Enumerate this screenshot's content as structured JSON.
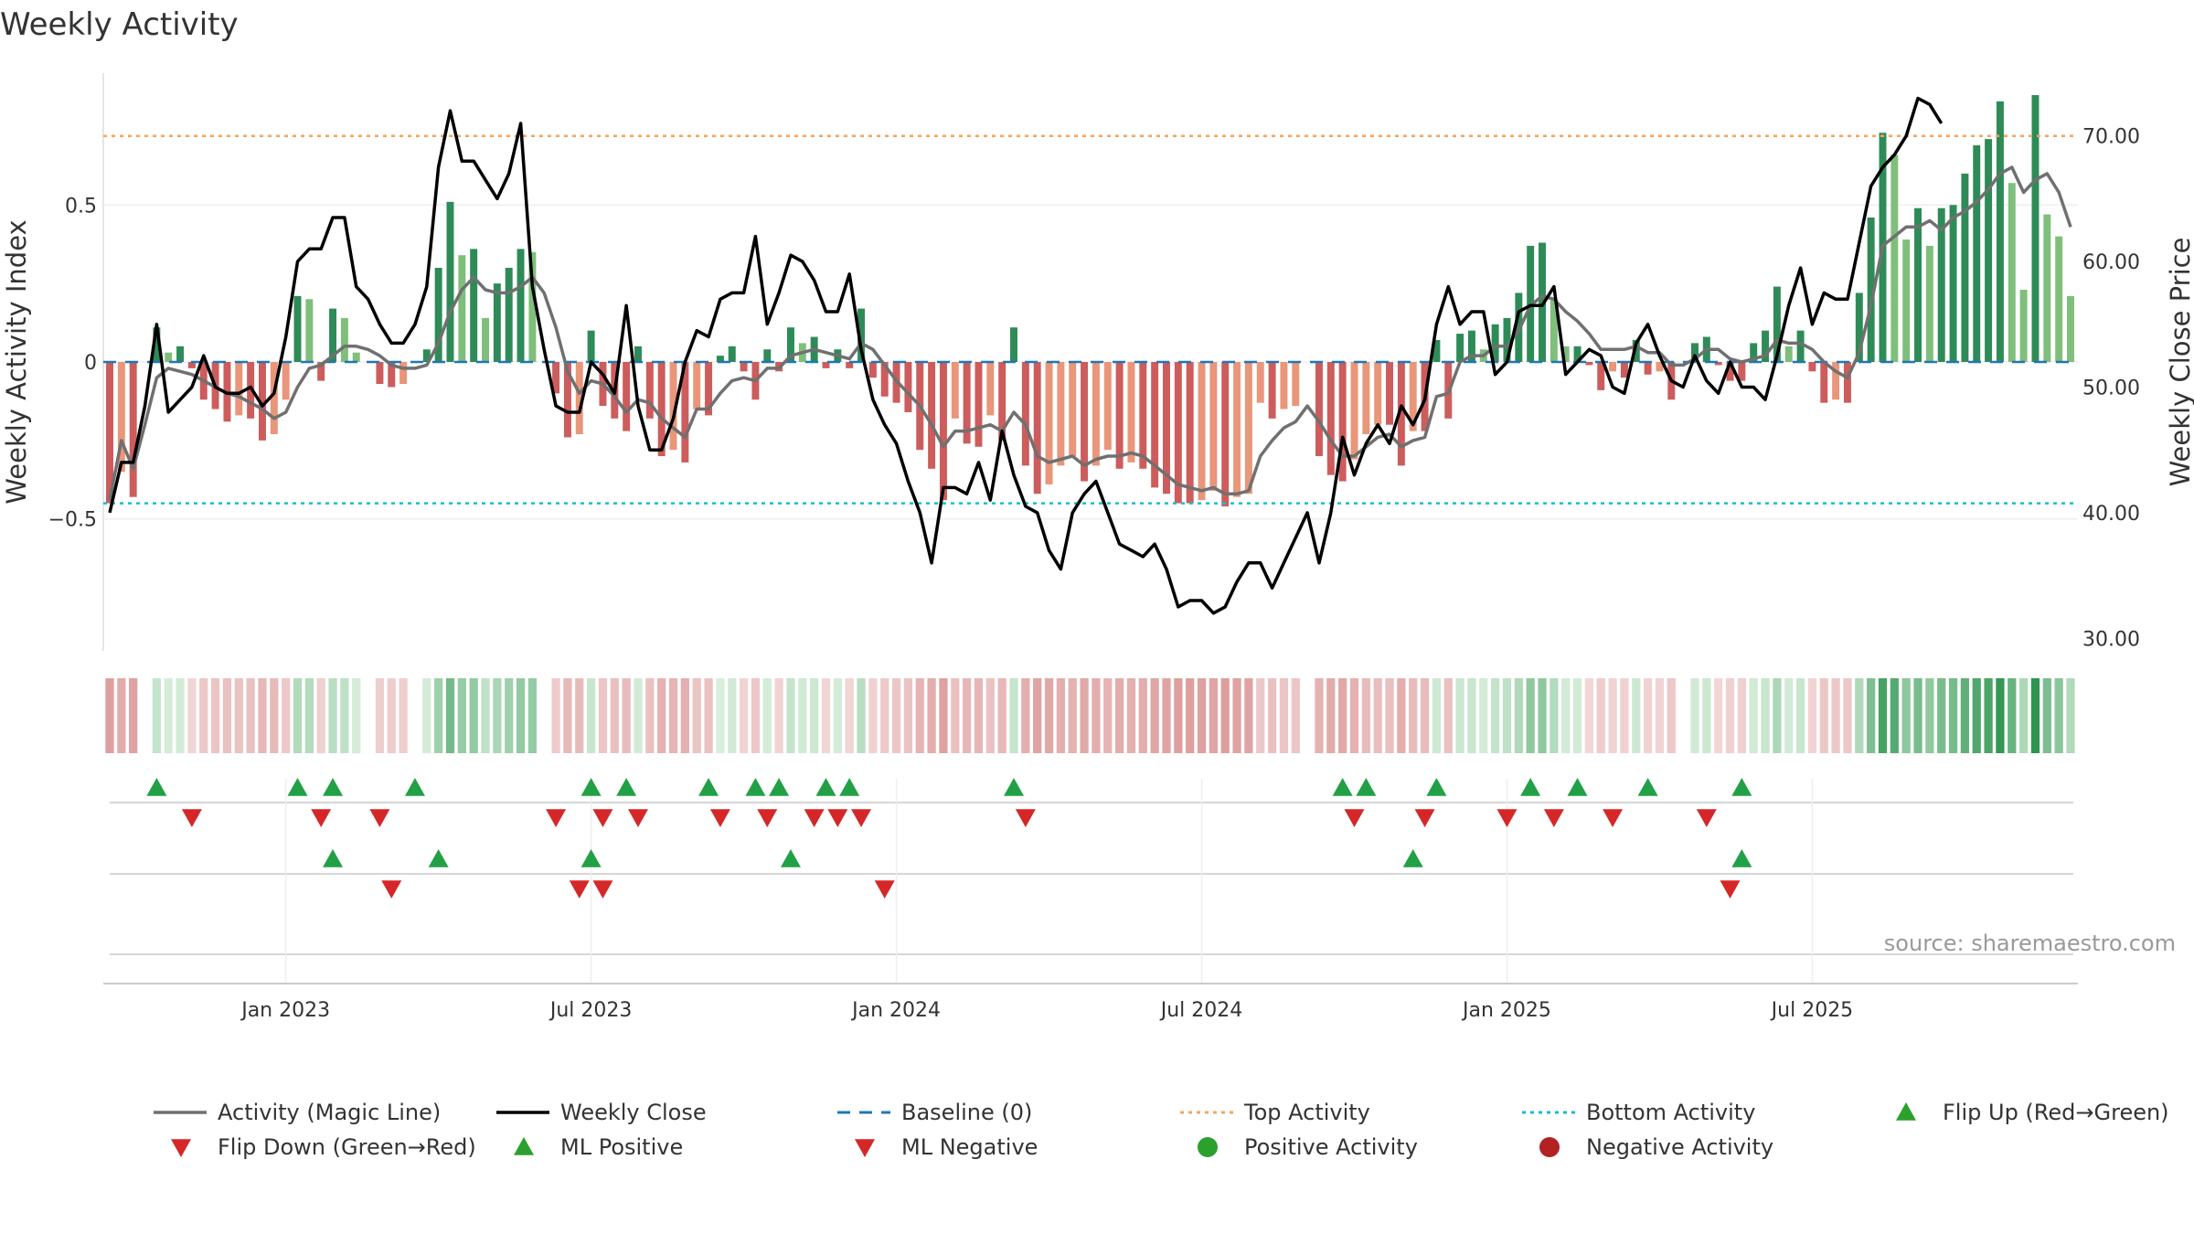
{
  "chart_data": {
    "type": "bar",
    "title": "Weekly Activity",
    "ylabel": "Weekly Activity Index",
    "y2label": "Weekly Close Price",
    "ylim": [
      -0.92,
      0.92
    ],
    "y2lim": [
      29,
      75
    ],
    "yticks": [
      {
        "v": 0.5,
        "label": "0.5"
      },
      {
        "v": 0,
        "label": "0"
      },
      {
        "v": -0.5,
        "label": "−0.5"
      }
    ],
    "y2ticks": [
      {
        "v": 70,
        "label": "70.00"
      },
      {
        "v": 60,
        "label": "60.00"
      },
      {
        "v": 50,
        "label": "50.00"
      },
      {
        "v": 40,
        "label": "40.00"
      },
      {
        "v": 30,
        "label": "30.00"
      }
    ],
    "xticks": [
      {
        "i": 15,
        "label": "Jan 2023"
      },
      {
        "i": 41,
        "label": "Jul 2023"
      },
      {
        "i": 67,
        "label": "Jan 2024"
      },
      {
        "i": 93,
        "label": "Jul 2024"
      },
      {
        "i": 119,
        "label": "Jan 2025"
      },
      {
        "i": 145,
        "label": "Jul 2025"
      }
    ],
    "top_activity": 0.72,
    "bottom_activity": -0.45,
    "activity": [
      -0.45,
      -0.35,
      -0.43,
      0,
      0.11,
      0.03,
      0.05,
      -0.02,
      -0.12,
      -0.15,
      -0.19,
      -0.17,
      -0.18,
      -0.25,
      -0.23,
      -0.12,
      0.21,
      0.2,
      -0.06,
      0.17,
      0.14,
      0.03,
      0,
      -0.07,
      -0.08,
      -0.07,
      0,
      0.04,
      0.3,
      0.51,
      0.34,
      0.36,
      0.14,
      0.25,
      0.3,
      0.36,
      0.35,
      0,
      -0.1,
      -0.24,
      -0.23,
      0.1,
      -0.14,
      -0.18,
      -0.22,
      0.05,
      -0.18,
      -0.3,
      -0.28,
      -0.32,
      -0.15,
      -0.17,
      0.02,
      0.05,
      -0.03,
      -0.12,
      0.04,
      -0.03,
      0.11,
      0.06,
      0.08,
      -0.02,
      0.04,
      -0.02,
      0.17,
      -0.05,
      -0.11,
      -0.13,
      -0.16,
      -0.28,
      -0.34,
      -0.44,
      -0.18,
      -0.26,
      -0.27,
      -0.17,
      -0.25,
      0.11,
      -0.33,
      -0.42,
      -0.39,
      -0.33,
      -0.3,
      -0.38,
      -0.33,
      -0.28,
      -0.34,
      -0.32,
      -0.34,
      -0.4,
      -0.42,
      -0.45,
      -0.45,
      -0.44,
      -0.41,
      -0.46,
      -0.43,
      -0.42,
      -0.13,
      -0.18,
      -0.15,
      -0.14,
      0,
      -0.3,
      -0.36,
      -0.38,
      -0.31,
      -0.23,
      -0.2,
      -0.2,
      -0.33,
      -0.22,
      -0.22,
      0.07,
      -0.18,
      0.09,
      0.1,
      0.04,
      0.12,
      0.14,
      0.22,
      0.37,
      0.38,
      0.2,
      0.05,
      0.05,
      -0.01,
      -0.09,
      -0.03,
      -0.05,
      0.07,
      -0.04,
      -0.03,
      -0.12,
      0,
      0.06,
      0.08,
      -0.01,
      -0.06,
      -0.06,
      0.06,
      0.1,
      0.24,
      0.05,
      0.1,
      -0.03,
      -0.13,
      -0.12,
      -0.13,
      0.22,
      0.46,
      0.73,
      0.66,
      0.39,
      0.49,
      0.37,
      0.49,
      0.5,
      0.6,
      0.69,
      0.71,
      0.83,
      0.57,
      0.23,
      0.85,
      0.47,
      0.4,
      0.21
    ],
    "activity_labels": [],
    "magic_line": [
      -0.44,
      -0.25,
      -0.34,
      -0.2,
      -0.05,
      -0.02,
      -0.03,
      -0.04,
      -0.06,
      -0.08,
      -0.1,
      -0.11,
      -0.13,
      -0.15,
      -0.18,
      -0.16,
      -0.08,
      -0.02,
      -0.01,
      0.02,
      0.05,
      0.05,
      0.04,
      0.02,
      -0.01,
      -0.02,
      -0.02,
      -0.01,
      0.06,
      0.16,
      0.23,
      0.27,
      0.23,
      0.22,
      0.22,
      0.24,
      0.27,
      0.22,
      0.11,
      -0.03,
      -0.1,
      -0.06,
      -0.07,
      -0.11,
      -0.16,
      -0.12,
      -0.13,
      -0.18,
      -0.21,
      -0.24,
      -0.15,
      -0.15,
      -0.1,
      -0.06,
      -0.05,
      -0.06,
      -0.02,
      -0.02,
      0.02,
      0.03,
      0.04,
      0.03,
      0.02,
      0.01,
      0.06,
      0.04,
      -0.01,
      -0.06,
      -0.1,
      -0.14,
      -0.2,
      -0.27,
      -0.22,
      -0.22,
      -0.21,
      -0.2,
      -0.22,
      -0.16,
      -0.2,
      -0.3,
      -0.32,
      -0.31,
      -0.3,
      -0.33,
      -0.31,
      -0.3,
      -0.3,
      -0.29,
      -0.3,
      -0.33,
      -0.36,
      -0.39,
      -0.4,
      -0.41,
      -0.4,
      -0.42,
      -0.42,
      -0.41,
      -0.3,
      -0.25,
      -0.21,
      -0.19,
      -0.14,
      -0.19,
      -0.25,
      -0.3,
      -0.3,
      -0.27,
      -0.24,
      -0.23,
      -0.27,
      -0.25,
      -0.24,
      -0.11,
      -0.1,
      0,
      0.02,
      0.02,
      0.05,
      0.05,
      0.1,
      0.18,
      0.21,
      0.2,
      0.16,
      0.13,
      0.09,
      0.04,
      0.04,
      0.04,
      0.05,
      0.03,
      0.03,
      -0.01,
      -0.01,
      0.01,
      0.04,
      0.04,
      0.01,
      0,
      0.01,
      0.02,
      0.07,
      0.06,
      0.06,
      0.04,
      0,
      -0.03,
      -0.05,
      0.03,
      0.18,
      0.37,
      0.4,
      0.43,
      0.43,
      0.45,
      0.42,
      0.46,
      0.48,
      0.51,
      0.55,
      0.6,
      0.62,
      0.54,
      0.58,
      0.6,
      0.54,
      0.43
    ],
    "close": [
      40.0,
      44.0,
      44.0,
      48.5,
      55.0,
      48.0,
      49.0,
      50.0,
      52.5,
      50.0,
      49.5,
      49.5,
      50.0,
      48.5,
      49.5,
      54.0,
      60.0,
      61.0,
      61.0,
      63.5,
      63.5,
      58.0,
      57.0,
      55.0,
      53.5,
      53.5,
      55.0,
      58.0,
      67.5,
      72.0,
      68.0,
      68.0,
      66.5,
      65.0,
      67.0,
      71.0,
      58.0,
      53.0,
      48.5,
      48.0,
      48.0,
      52.0,
      51.0,
      49.5,
      56.5,
      48.5,
      45.0,
      45.0,
      47.5,
      52.0,
      54.5,
      54.0,
      57.0,
      57.5,
      57.5,
      62.0,
      55.0,
      57.5,
      60.5,
      60.0,
      58.5,
      56.0,
      56.0,
      59.0,
      53.0,
      49.0,
      47.0,
      45.5,
      42.5,
      40.0,
      36.0,
      42.0,
      42.0,
      41.5,
      44.0,
      41.0,
      46.5,
      43.0,
      40.5,
      40.0,
      37.0,
      35.5,
      40.0,
      41.5,
      42.5,
      40.0,
      37.5,
      37.0,
      36.5,
      37.5,
      35.5,
      32.5,
      33.0,
      33.0,
      32.0,
      32.5,
      34.5,
      36.0,
      36.0,
      34.0,
      36.0,
      38.0,
      40.0,
      36.0,
      40.0,
      46.0,
      43.0,
      45.5,
      47.0,
      45.5,
      48.5,
      47.0,
      49.0,
      55.0,
      58.0,
      55.0,
      56.0,
      56.0,
      51.0,
      52.0,
      56.0,
      56.5,
      56.5,
      58.0,
      51.0,
      52.0,
      53.0,
      52.5,
      50.0,
      49.5,
      53.5,
      55.0,
      52.5,
      50.5,
      50.0,
      52.5,
      50.5,
      49.5,
      52.0,
      50.0,
      50.0,
      49.0,
      52.5,
      56.5,
      59.5,
      55.0,
      57.5,
      57.0,
      57.0,
      61.5,
      66.0,
      67.5,
      68.5,
      70.0,
      73.0,
      72.5,
      71.0
    ],
    "flip_up": [
      4,
      16,
      19,
      26,
      41,
      44,
      51,
      55,
      57,
      61,
      63,
      77,
      105,
      107,
      113,
      121,
      125,
      131,
      139
    ],
    "flip_down": [
      7,
      18,
      23,
      38,
      42,
      45,
      52,
      56,
      60,
      62,
      64,
      78,
      106,
      112,
      119,
      123,
      128,
      136
    ],
    "ml_positive": [
      19,
      28,
      41,
      58,
      111,
      139
    ],
    "ml_negative": [
      24,
      40,
      42,
      66,
      138
    ],
    "legend": [
      {
        "label": "Activity (Magic Line)",
        "kind": "line",
        "color": "#707070"
      },
      {
        "label": "Weekly Close",
        "kind": "line",
        "color": "#000000"
      },
      {
        "label": "Baseline (0)",
        "kind": "dash",
        "color": "#1f77b4"
      },
      {
        "label": "Top Activity",
        "kind": "dot",
        "color": "#f4a460"
      },
      {
        "label": "Bottom Activity",
        "kind": "dot",
        "color": "#17becf"
      },
      {
        "label": "Flip Up (Red→Green)",
        "kind": "tri-up",
        "color": "#2ca02c"
      },
      {
        "label": "Flip Down (Green→Red)",
        "kind": "tri-down",
        "color": "#d62728"
      },
      {
        "label": "ML Positive",
        "kind": "tri-up",
        "color": "#2ca02c"
      },
      {
        "label": "ML Negative",
        "kind": "tri-down",
        "color": "#d62728"
      },
      {
        "label": "Positive Activity",
        "kind": "circle",
        "color": "#2ca02c"
      },
      {
        "label": "Negative Activity",
        "kind": "circle",
        "color": "#b22222"
      }
    ],
    "source": "source: sharemaestro.com"
  }
}
